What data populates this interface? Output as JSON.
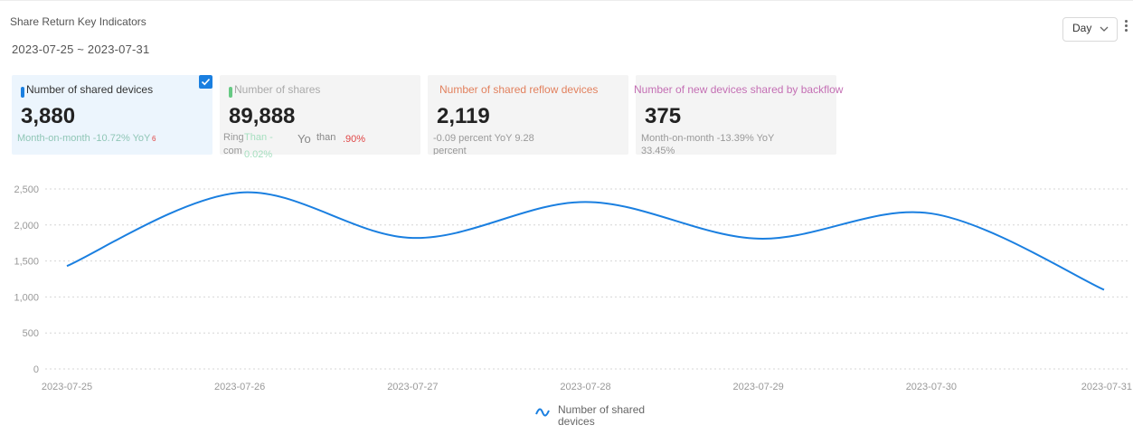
{
  "header": {
    "title": "Share Return Key Indicators",
    "date_range": "2023-07-25 ~ 2023-07-31",
    "period_select": "Day"
  },
  "cards": [
    {
      "title": "Number of shared devices",
      "value": "3,880",
      "sub": "Month-on-month -10.72% YoY",
      "sub_mark": "6",
      "selected": true,
      "accent": "#1a7fe0"
    },
    {
      "title": "Number of shares",
      "value": "89,888",
      "sub_a": "Ring",
      "sub_b": "Than -",
      "sub_c": "Yo",
      "sub_d": "than",
      "sub_e": ".90%",
      "sub_f": "com",
      "sub_g": "0.02%",
      "accent": "#66c983"
    },
    {
      "title": "Number of shared reflow devices",
      "value": "2,119",
      "sub": "-0.09 percent YoY 9.28 percent",
      "accent": "#e2815e"
    },
    {
      "title": "Number of new devices shared by backflow",
      "value": "375",
      "sub": "Month-on-month -13.39% YoY 33.45%",
      "accent": "#c46fb4"
    }
  ],
  "legend": {
    "label": "Number of shared devices"
  },
  "chart_data": {
    "type": "line",
    "smooth": true,
    "x": [
      "2023-07-25",
      "2023-07-26",
      "2023-07-27",
      "2023-07-28",
      "2023-07-29",
      "2023-07-30",
      "2023-07-31"
    ],
    "series": [
      {
        "name": "Number of shared devices",
        "color": "#1a7fe0",
        "values": [
          1430,
          2450,
          1820,
          2320,
          1810,
          2160,
          1100
        ]
      }
    ],
    "y_ticks": [
      0,
      500,
      1000,
      1500,
      2000,
      2500
    ],
    "ylim": [
      0,
      2500
    ],
    "grid": true,
    "legend_position": "bottom"
  }
}
